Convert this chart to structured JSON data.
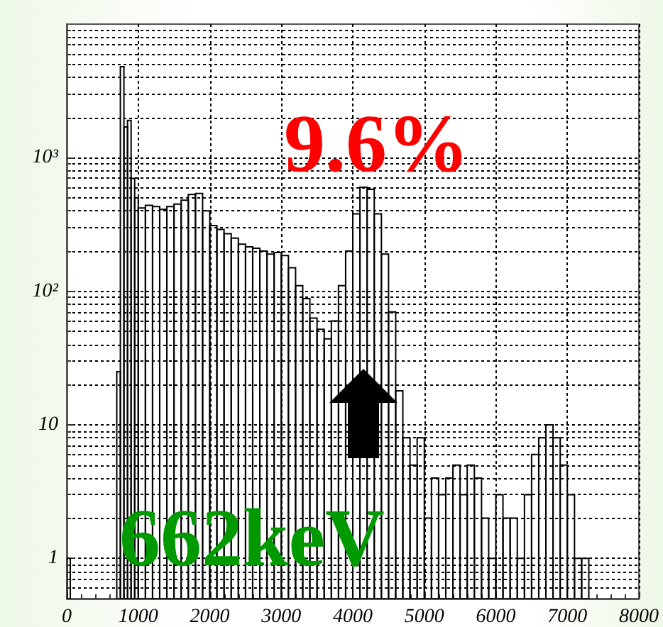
{
  "chart_data": {
    "type": "histogram",
    "bins": [
      0,
      50,
      700,
      750,
      800,
      850,
      900,
      950,
      1000,
      1100,
      1200,
      1300,
      1400,
      1500,
      1600,
      1700,
      1800,
      1900,
      2000,
      2100,
      2200,
      2300,
      2400,
      2500,
      2600,
      2700,
      2800,
      2900,
      3000,
      3100,
      3200,
      3300,
      3400,
      3500,
      3600,
      3700,
      3800,
      3900,
      4000,
      4100,
      4200,
      4300,
      4400,
      4500,
      4600,
      4700,
      4800,
      4900,
      5000,
      5100,
      5200,
      5300,
      5400,
      5500,
      5600,
      5700,
      5800,
      5900,
      6000,
      6100,
      6200,
      6300,
      6400,
      6500,
      6600,
      6700,
      6800,
      6900,
      7000,
      7100,
      7200,
      7300
    ],
    "values": [
      1,
      null,
      25,
      4800,
      1700,
      1900,
      700,
      500,
      420,
      440,
      430,
      410,
      430,
      450,
      480,
      530,
      540,
      400,
      310,
      290,
      270,
      250,
      225,
      215,
      210,
      200,
      190,
      195,
      185,
      150,
      110,
      88,
      63,
      52,
      44,
      60,
      110,
      200,
      380,
      600,
      580,
      380,
      190,
      70,
      18,
      8,
      5,
      8,
      2,
      4,
      3,
      4,
      5,
      3,
      5,
      4,
      2,
      1,
      3,
      2,
      2,
      1,
      3,
      6,
      8,
      10,
      8,
      5,
      3,
      1,
      1
    ],
    "color": "#000000",
    "xlim": [
      0,
      8000
    ],
    "xticks": [
      0,
      1000,
      2000,
      3000,
      4000,
      5000,
      6000,
      7000,
      8000
    ],
    "ylim": [
      0.5,
      10000
    ],
    "yticks": [
      1,
      10,
      {
        "value": 100,
        "label": "10²"
      },
      {
        "value": 1000,
        "label": "10³"
      }
    ],
    "log": "y",
    "grid": true,
    "annotations": [
      "9.6%",
      "662keV"
    ]
  }
}
